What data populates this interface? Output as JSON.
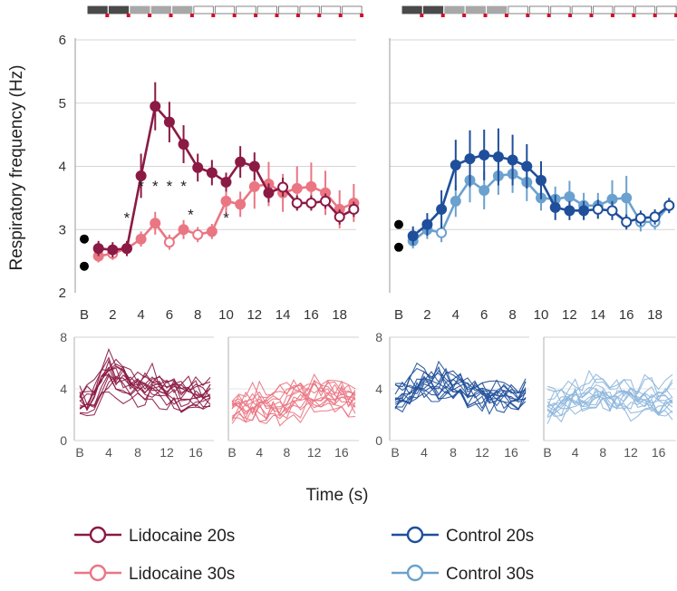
{
  "chart_data": [
    {
      "id": "main-left",
      "type": "line",
      "ylabel": "Respiratory frequency (Hz)",
      "ylim": [
        2,
        6
      ],
      "yticks": [
        2,
        3,
        4,
        5,
        6
      ],
      "xticks": [
        {
          "x": 0,
          "label": "B"
        },
        {
          "x": 2,
          "label": "2"
        },
        {
          "x": 4,
          "label": "4"
        },
        {
          "x": 6,
          "label": "6"
        },
        {
          "x": 8,
          "label": "8"
        },
        {
          "x": 10,
          "label": "10"
        },
        {
          "x": 12,
          "label": "12"
        },
        {
          "x": 14,
          "label": "14"
        },
        {
          "x": 16,
          "label": "16"
        },
        {
          "x": 18,
          "label": "18"
        }
      ],
      "grid": true,
      "stim_pattern": [
        "dark",
        "dark",
        "gray",
        "gray",
        "gray",
        "white",
        "white",
        "white",
        "white",
        "white",
        "white",
        "white",
        "white"
      ],
      "baseline_dots": [
        2.85,
        2.42
      ],
      "series": [
        {
          "name": "Lidocaine 20s",
          "color": "#8b1a44",
          "x": [
            1,
            2,
            3,
            4,
            5,
            6,
            7,
            8,
            9,
            10,
            11,
            12,
            13,
            14,
            15,
            16,
            17,
            18,
            19
          ],
          "y": [
            2.7,
            2.68,
            2.7,
            3.85,
            4.95,
            4.7,
            4.35,
            3.98,
            3.9,
            3.75,
            4.07,
            4.0,
            3.58,
            3.67,
            3.42,
            3.42,
            3.45,
            3.2,
            3.32
          ],
          "err": [
            0.12,
            0.12,
            0.12,
            0.35,
            0.38,
            0.32,
            0.3,
            0.22,
            0.2,
            0.15,
            0.25,
            0.22,
            0.15,
            0.15,
            0.12,
            0.12,
            0.12,
            0.12,
            0.12
          ],
          "filled": [
            1,
            1,
            1,
            1,
            1,
            1,
            1,
            1,
            1,
            1,
            1,
            1,
            1,
            0,
            0,
            0,
            0,
            0,
            0
          ]
        },
        {
          "name": "Lidocaine 30s",
          "color": "#ea7683",
          "x": [
            1,
            2,
            3,
            4,
            5,
            6,
            7,
            8,
            9,
            10,
            11,
            12,
            13,
            14,
            15,
            16,
            17,
            18,
            19
          ],
          "y": [
            2.58,
            2.62,
            2.7,
            2.85,
            3.1,
            2.8,
            3.0,
            2.92,
            2.97,
            3.45,
            3.4,
            3.68,
            3.72,
            3.58,
            3.65,
            3.68,
            3.58,
            3.32,
            3.42
          ],
          "err": [
            0.1,
            0.1,
            0.1,
            0.12,
            0.18,
            0.12,
            0.15,
            0.12,
            0.12,
            0.2,
            0.2,
            0.35,
            0.35,
            0.3,
            0.35,
            0.38,
            0.35,
            0.3,
            0.3
          ],
          "filled": [
            1,
            0,
            1,
            1,
            1,
            0,
            1,
            0,
            1,
            1,
            1,
            1,
            1,
            1,
            1,
            1,
            1,
            1,
            1
          ]
        }
      ],
      "annotations": [
        {
          "x": 4,
          "y": 3.75,
          "text": "*"
        },
        {
          "x": 5,
          "y": 3.75,
          "text": "*"
        },
        {
          "x": 6,
          "y": 3.75,
          "text": "*"
        },
        {
          "x": 7,
          "y": 3.75,
          "text": "*"
        },
        {
          "x": 3,
          "y": 3.25,
          "text": "*"
        },
        {
          "x": 7.5,
          "y": 3.3,
          "text": "*"
        },
        {
          "x": 10,
          "y": 3.25,
          "text": "*"
        }
      ]
    },
    {
      "id": "main-right",
      "type": "line",
      "ylim": [
        2,
        6
      ],
      "xticks": [
        {
          "x": 0,
          "label": "B"
        },
        {
          "x": 2,
          "label": "2"
        },
        {
          "x": 4,
          "label": "4"
        },
        {
          "x": 6,
          "label": "6"
        },
        {
          "x": 8,
          "label": "8"
        },
        {
          "x": 10,
          "label": "10"
        },
        {
          "x": 12,
          "label": "12"
        },
        {
          "x": 14,
          "label": "14"
        },
        {
          "x": 16,
          "label": "16"
        },
        {
          "x": 18,
          "label": "18"
        }
      ],
      "grid": true,
      "stim_pattern": [
        "dark",
        "dark",
        "gray",
        "gray",
        "gray",
        "white",
        "white",
        "white",
        "white",
        "white",
        "white",
        "white",
        "white"
      ],
      "baseline_dots": [
        3.08,
        2.72
      ],
      "series": [
        {
          "name": "Control 20s",
          "color": "#1f4f9a",
          "x": [
            1,
            2,
            3,
            4,
            5,
            6,
            7,
            8,
            9,
            10,
            11,
            12,
            13,
            14,
            15,
            16,
            17,
            18,
            19
          ],
          "y": [
            2.9,
            3.08,
            3.32,
            4.02,
            4.12,
            4.18,
            4.15,
            4.1,
            4.0,
            3.78,
            3.35,
            3.3,
            3.3,
            3.32,
            3.3,
            3.12,
            3.18,
            3.2,
            3.38
          ],
          "err": [
            0.15,
            0.18,
            0.3,
            0.4,
            0.45,
            0.4,
            0.45,
            0.4,
            0.35,
            0.3,
            0.2,
            0.15,
            0.15,
            0.15,
            0.15,
            0.12,
            0.12,
            0.12,
            0.12
          ],
          "filled": [
            1,
            1,
            1,
            1,
            1,
            1,
            1,
            1,
            1,
            1,
            1,
            1,
            1,
            0,
            0,
            0,
            0,
            0,
            0
          ]
        },
        {
          "name": "Control 30s",
          "color": "#6ba1cf",
          "x": [
            1,
            2,
            3,
            4,
            5,
            6,
            7,
            8,
            9,
            10,
            11,
            12,
            13,
            14,
            15,
            16,
            17,
            18,
            19
          ],
          "y": [
            2.82,
            3.0,
            2.95,
            3.45,
            3.78,
            3.62,
            3.85,
            3.88,
            3.75,
            3.5,
            3.48,
            3.52,
            3.38,
            3.38,
            3.48,
            3.5,
            3.12,
            3.12,
            3.38
          ],
          "err": [
            0.12,
            0.15,
            0.15,
            0.25,
            0.35,
            0.3,
            0.3,
            0.3,
            0.3,
            0.2,
            0.2,
            0.25,
            0.2,
            0.2,
            0.3,
            0.35,
            0.15,
            0.12,
            0.12
          ],
          "filled": [
            1,
            1,
            0,
            1,
            1,
            1,
            1,
            1,
            1,
            1,
            1,
            1,
            1,
            1,
            1,
            1,
            0,
            0,
            1
          ]
        }
      ]
    },
    {
      "id": "small-1",
      "type": "line",
      "color": "#8b1a44",
      "ylim": [
        0,
        8
      ],
      "yticks": [
        0,
        4,
        8
      ],
      "xticks": [
        {
          "x": 0,
          "label": "B"
        },
        {
          "x": 4,
          "label": "4"
        },
        {
          "x": 8,
          "label": "8"
        },
        {
          "x": 12,
          "label": "12"
        },
        {
          "x": 16,
          "label": "16"
        }
      ],
      "mean": [
        3.0,
        2.8,
        3.2,
        4.5,
        5.3,
        4.9,
        4.7,
        4.3,
        4.2,
        4.0,
        4.3,
        4.1,
        3.7,
        3.7,
        3.5,
        3.5,
        3.5,
        3.3,
        3.4
      ]
    },
    {
      "id": "small-2",
      "type": "line",
      "color": "#ea7683",
      "ylim": [
        0,
        8
      ],
      "xticks": [
        {
          "x": 0,
          "label": "B"
        },
        {
          "x": 4,
          "label": "4"
        },
        {
          "x": 8,
          "label": "8"
        },
        {
          "x": 12,
          "label": "12"
        },
        {
          "x": 16,
          "label": "16"
        }
      ],
      "mean": [
        2.6,
        2.6,
        2.7,
        2.9,
        3.1,
        2.8,
        3.0,
        2.9,
        3.0,
        3.4,
        3.4,
        3.6,
        3.7,
        3.6,
        3.6,
        3.7,
        3.6,
        3.3,
        3.4
      ]
    },
    {
      "id": "small-3",
      "type": "line",
      "color": "#1f4f9a",
      "ylim": [
        0,
        8
      ],
      "yticks": [
        0,
        4,
        8
      ],
      "xticks": [
        {
          "x": 0,
          "label": "B"
        },
        {
          "x": 4,
          "label": "4"
        },
        {
          "x": 8,
          "label": "8"
        },
        {
          "x": 12,
          "label": "12"
        },
        {
          "x": 16,
          "label": "16"
        }
      ],
      "mean": [
        2.9,
        3.1,
        3.3,
        4.0,
        4.1,
        4.2,
        4.2,
        4.1,
        4.0,
        3.8,
        3.4,
        3.3,
        3.3,
        3.3,
        3.3,
        3.1,
        3.2,
        3.2,
        3.4
      ]
    },
    {
      "id": "small-4",
      "type": "line",
      "color": "#8fb7dd",
      "ylim": [
        0,
        8
      ],
      "xticks": [
        {
          "x": 0,
          "label": "B"
        },
        {
          "x": 4,
          "label": "4"
        },
        {
          "x": 8,
          "label": "8"
        },
        {
          "x": 12,
          "label": "12"
        },
        {
          "x": 16,
          "label": "16"
        }
      ],
      "mean": [
        2.8,
        3.0,
        3.0,
        3.4,
        3.8,
        3.6,
        3.8,
        3.9,
        3.7,
        3.5,
        3.5,
        3.5,
        3.4,
        3.4,
        3.5,
        3.5,
        3.1,
        3.1,
        3.4
      ]
    }
  ],
  "xlabel": "Time (s)",
  "legend": [
    {
      "label": "Lidocaine 20s",
      "color": "#8b1a44"
    },
    {
      "label": "Lidocaine 30s",
      "color": "#ea7683"
    },
    {
      "label": "Control 20s",
      "color": "#1f4f9a"
    },
    {
      "label": "Control 30s",
      "color": "#6ba1cf"
    }
  ]
}
